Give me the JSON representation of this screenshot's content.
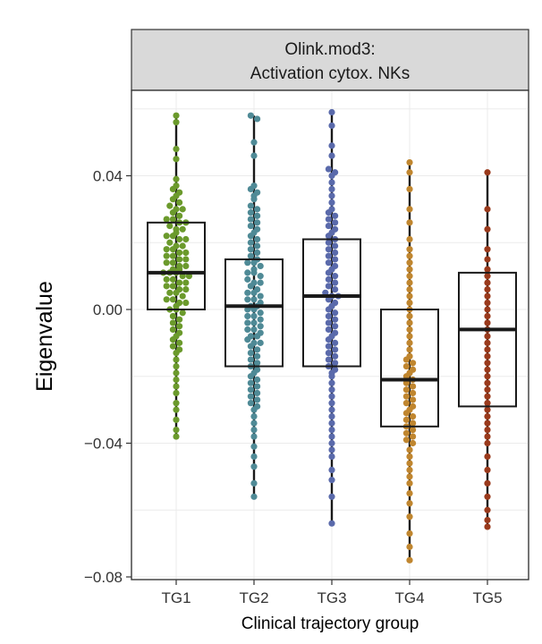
{
  "chart_data": {
    "type": "box",
    "facet_title": [
      "Olink.mod3:",
      "Activation cytox. NKs"
    ],
    "xlabel": "Clinical trajectory group",
    "ylabel": "Eigenvalue",
    "ylim": [
      -0.08,
      0.06
    ],
    "yticks": [
      -0.08,
      -0.04,
      0.0,
      0.04
    ],
    "ytick_labels": [
      "−0.08",
      "−0.04",
      "0.00",
      "0.04"
    ],
    "grid": true,
    "categories": [
      "TG1",
      "TG2",
      "TG3",
      "TG4",
      "TG5"
    ],
    "colors": {
      "TG1": "#6b9a2c",
      "TG2": "#4f8a96",
      "TG3": "#5a6aab",
      "TG4": "#c0862f",
      "TG5": "#9a3a1c"
    },
    "boxes": [
      {
        "group": "TG1",
        "whisker_low": -0.038,
        "q1": 0.0,
        "median": 0.011,
        "q3": 0.026,
        "whisker_high": 0.058
      },
      {
        "group": "TG2",
        "whisker_low": -0.056,
        "q1": -0.017,
        "median": 0.001,
        "q3": 0.015,
        "whisker_high": 0.058
      },
      {
        "group": "TG3",
        "whisker_low": -0.064,
        "q1": -0.017,
        "median": 0.004,
        "q3": 0.021,
        "whisker_high": 0.059
      },
      {
        "group": "TG4",
        "whisker_low": -0.075,
        "q1": -0.035,
        "median": -0.021,
        "q3": 0.0,
        "whisker_high": 0.044
      },
      {
        "group": "TG5",
        "whisker_low": -0.065,
        "q1": -0.029,
        "median": -0.006,
        "q3": 0.011,
        "whisker_high": 0.041
      }
    ],
    "points": [
      {
        "group": "TG1",
        "values": [
          0.058,
          0.056,
          0.048,
          0.045,
          0.039,
          0.037,
          0.036,
          0.035,
          0.034,
          0.033,
          0.032,
          0.031,
          0.03,
          0.03,
          0.029,
          0.028,
          0.027,
          0.027,
          0.026,
          0.026,
          0.025,
          0.024,
          0.024,
          0.023,
          0.022,
          0.022,
          0.021,
          0.021,
          0.02,
          0.019,
          0.019,
          0.018,
          0.018,
          0.017,
          0.017,
          0.016,
          0.016,
          0.015,
          0.015,
          0.014,
          0.014,
          0.013,
          0.013,
          0.012,
          0.012,
          0.011,
          0.011,
          0.011,
          0.01,
          0.01,
          0.009,
          0.009,
          0.008,
          0.008,
          0.007,
          0.007,
          0.006,
          0.006,
          0.005,
          0.005,
          0.004,
          0.003,
          0.003,
          0.002,
          0.002,
          0.001,
          0.0,
          0.0,
          -0.001,
          -0.002,
          -0.003,
          -0.004,
          -0.005,
          -0.006,
          -0.007,
          -0.008,
          -0.009,
          -0.01,
          -0.011,
          -0.012,
          -0.013,
          -0.015,
          -0.017,
          -0.019,
          -0.021,
          -0.023,
          -0.025,
          -0.028,
          -0.03,
          -0.033,
          -0.036,
          -0.038
        ]
      },
      {
        "group": "TG2",
        "values": [
          0.058,
          0.057,
          0.05,
          0.046,
          0.037,
          0.036,
          0.035,
          0.034,
          0.033,
          0.031,
          0.03,
          0.029,
          0.028,
          0.027,
          0.026,
          0.025,
          0.024,
          0.023,
          0.022,
          0.021,
          0.02,
          0.019,
          0.018,
          0.017,
          0.016,
          0.015,
          0.014,
          0.014,
          0.013,
          0.012,
          0.011,
          0.011,
          0.01,
          0.009,
          0.008,
          0.008,
          0.007,
          0.006,
          0.005,
          0.005,
          0.004,
          0.003,
          0.003,
          0.002,
          0.001,
          0.001,
          0.0,
          0.0,
          -0.001,
          -0.002,
          -0.002,
          -0.003,
          -0.004,
          -0.004,
          -0.005,
          -0.006,
          -0.006,
          -0.007,
          -0.008,
          -0.008,
          -0.009,
          -0.01,
          -0.01,
          -0.011,
          -0.012,
          -0.013,
          -0.014,
          -0.015,
          -0.016,
          -0.017,
          -0.018,
          -0.019,
          -0.02,
          -0.021,
          -0.022,
          -0.023,
          -0.024,
          -0.025,
          -0.026,
          -0.027,
          -0.028,
          -0.029,
          -0.03,
          -0.032,
          -0.034,
          -0.036,
          -0.038,
          -0.041,
          -0.044,
          -0.047,
          -0.052,
          -0.056
        ]
      },
      {
        "group": "TG3",
        "values": [
          0.059,
          0.055,
          0.049,
          0.046,
          0.042,
          0.041,
          0.04,
          0.038,
          0.036,
          0.034,
          0.032,
          0.03,
          0.029,
          0.028,
          0.027,
          0.026,
          0.025,
          0.024,
          0.023,
          0.022,
          0.021,
          0.02,
          0.019,
          0.018,
          0.017,
          0.016,
          0.015,
          0.014,
          0.013,
          0.012,
          0.011,
          0.01,
          0.009,
          0.008,
          0.007,
          0.006,
          0.005,
          0.004,
          0.004,
          0.003,
          0.002,
          0.001,
          0.0,
          -0.001,
          -0.002,
          -0.003,
          -0.004,
          -0.005,
          -0.006,
          -0.007,
          -0.008,
          -0.009,
          -0.01,
          -0.011,
          -0.012,
          -0.013,
          -0.014,
          -0.015,
          -0.016,
          -0.017,
          -0.018,
          -0.019,
          -0.02,
          -0.022,
          -0.024,
          -0.026,
          -0.028,
          -0.03,
          -0.032,
          -0.034,
          -0.036,
          -0.038,
          -0.04,
          -0.042,
          -0.044,
          -0.048,
          -0.051,
          -0.056,
          -0.064
        ]
      },
      {
        "group": "TG4",
        "values": [
          0.044,
          0.041,
          0.036,
          0.03,
          0.026,
          0.021,
          0.018,
          0.016,
          0.014,
          0.012,
          0.01,
          0.008,
          0.006,
          0.004,
          0.002,
          0.0,
          -0.002,
          -0.004,
          -0.006,
          -0.008,
          -0.01,
          -0.012,
          -0.014,
          -0.015,
          -0.016,
          -0.017,
          -0.018,
          -0.019,
          -0.02,
          -0.021,
          -0.022,
          -0.023,
          -0.024,
          -0.025,
          -0.026,
          -0.027,
          -0.028,
          -0.029,
          -0.03,
          -0.031,
          -0.032,
          -0.033,
          -0.034,
          -0.035,
          -0.036,
          -0.037,
          -0.038,
          -0.039,
          -0.04,
          -0.042,
          -0.044,
          -0.046,
          -0.048,
          -0.05,
          -0.052,
          -0.055,
          -0.058,
          -0.062,
          -0.067,
          -0.071,
          -0.075
        ]
      },
      {
        "group": "TG5",
        "values": [
          0.041,
          0.03,
          0.024,
          0.018,
          0.015,
          0.012,
          0.01,
          0.008,
          0.006,
          0.004,
          0.002,
          0.0,
          -0.002,
          -0.004,
          -0.006,
          -0.008,
          -0.01,
          -0.012,
          -0.014,
          -0.016,
          -0.018,
          -0.02,
          -0.022,
          -0.024,
          -0.026,
          -0.028,
          -0.03,
          -0.032,
          -0.034,
          -0.036,
          -0.038,
          -0.04,
          -0.044,
          -0.048,
          -0.052,
          -0.056,
          -0.06,
          -0.063,
          -0.065
        ]
      }
    ]
  }
}
